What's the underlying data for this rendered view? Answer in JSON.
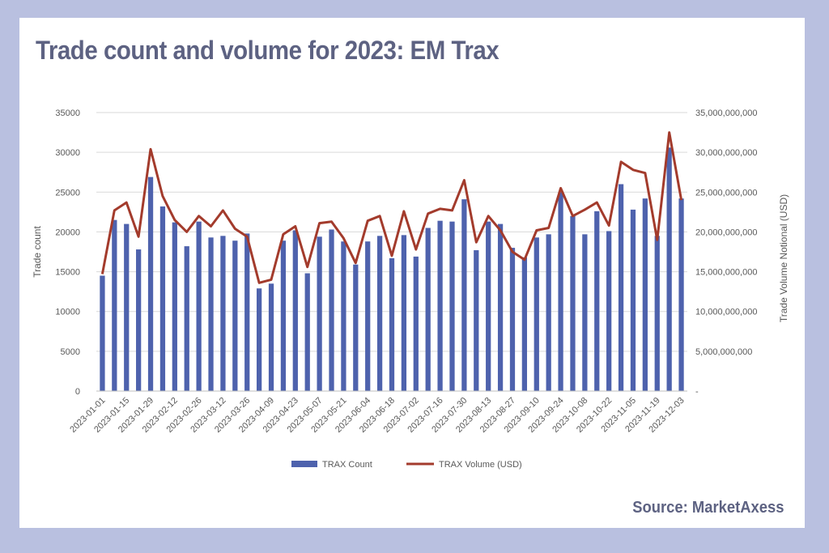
{
  "title": "Trade count and volume for 2023: EM Trax",
  "source": "Source: MarketAxess",
  "chart_data": {
    "type": "bar",
    "xlabel": "",
    "ylabel": "Trade count",
    "y2label": "Trade Volume Notional (USD)",
    "ylim": [
      0,
      35000
    ],
    "y2lim": [
      0,
      35000000000
    ],
    "yticks": [
      "0",
      "5000",
      "10000",
      "15000",
      "20000",
      "25000",
      "30000",
      "35000"
    ],
    "y2ticks": [
      "-",
      "5,000,000,000",
      "10,000,000,000",
      "15,000,000,000",
      "20,000,000,000",
      "25,000,000,000",
      "30,000,000,000",
      "35,000,000,000"
    ],
    "grid": "horizontal",
    "legend_position": "bottom",
    "colors": {
      "bars": "#4e62ad",
      "line": "#a33b2c",
      "grid": "#d9d9d9"
    },
    "categories": [
      "2023-01-01",
      "2023-01-08",
      "2023-01-15",
      "2023-01-22",
      "2023-01-29",
      "2023-02-05",
      "2023-02-12",
      "2023-02-19",
      "2023-02-26",
      "2023-03-05",
      "2023-03-12",
      "2023-03-19",
      "2023-03-26",
      "2023-04-02",
      "2023-04-09",
      "2023-04-16",
      "2023-04-23",
      "2023-04-30",
      "2023-05-07",
      "2023-05-14",
      "2023-05-21",
      "2023-05-28",
      "2023-06-04",
      "2023-06-11",
      "2023-06-18",
      "2023-06-25",
      "2023-07-02",
      "2023-07-09",
      "2023-07-16",
      "2023-07-23",
      "2023-07-30",
      "2023-08-06",
      "2023-08-13",
      "2023-08-20",
      "2023-08-27",
      "2023-09-03",
      "2023-09-10",
      "2023-09-17",
      "2023-09-24",
      "2023-10-01",
      "2023-10-08",
      "2023-10-15",
      "2023-10-22",
      "2023-10-29",
      "2023-11-05",
      "2023-11-12",
      "2023-11-19",
      "2023-11-26",
      "2023-12-03"
    ],
    "tick_labels": [
      "2023-01-01",
      "2023-01-15",
      "2023-01-29",
      "2023-02-12",
      "2023-02-26",
      "2023-03-12",
      "2023-03-26",
      "2023-04-09",
      "2023-04-23",
      "2023-05-07",
      "2023-05-21",
      "2023-06-04",
      "2023-06-18",
      "2023-07-02",
      "2023-07-16",
      "2023-07-30",
      "2023-08-13",
      "2023-08-27",
      "2023-09-10",
      "2023-09-24",
      "2023-10-08",
      "2023-10-22",
      "2023-11-05",
      "2023-11-19",
      "2023-12-03"
    ],
    "series": [
      {
        "name": "TRAX Count",
        "type": "bar",
        "axis": "left",
        "values": [
          14500,
          21500,
          21000,
          17800,
          26900,
          23200,
          21200,
          18200,
          21300,
          19300,
          19500,
          18900,
          19800,
          12900,
          13500,
          18900,
          20200,
          14800,
          19400,
          20300,
          18800,
          15900,
          18800,
          19500,
          16700,
          19600,
          16900,
          20500,
          21400,
          21300,
          24100,
          17700,
          21300,
          21000,
          18000,
          16800,
          19300,
          19700,
          25000,
          22000,
          19700,
          22600,
          20100,
          26000,
          22800,
          24200,
          19500,
          30600,
          24200
        ]
      },
      {
        "name": "TRAX Volume (USD)",
        "type": "line",
        "axis": "right",
        "values": [
          14700000000,
          22700000000,
          23700000000,
          19400000000,
          30400000000,
          24500000000,
          21500000000,
          20000000000,
          22000000000,
          20700000000,
          22700000000,
          20400000000,
          19400000000,
          13600000000,
          14000000000,
          19700000000,
          20700000000,
          15600000000,
          21100000000,
          21300000000,
          19200000000,
          16100000000,
          21400000000,
          22000000000,
          17000000000,
          22600000000,
          17800000000,
          22300000000,
          22900000000,
          22700000000,
          26500000000,
          18700000000,
          22000000000,
          20200000000,
          17500000000,
          16500000000,
          20200000000,
          20500000000,
          25500000000,
          22000000000,
          22800000000,
          23700000000,
          20800000000,
          28800000000,
          27800000000,
          27400000000,
          19000000000,
          32500000000,
          24000000000
        ]
      }
    ]
  }
}
